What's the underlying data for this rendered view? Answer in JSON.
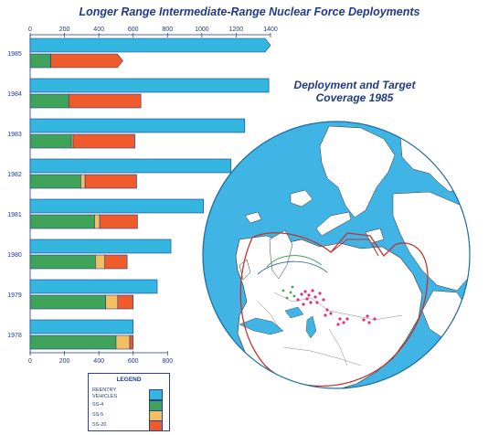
{
  "title": "Longer Range Intermediate-Range Nuclear Force Deployments",
  "subtitle": "Deployment and Target Coverage 1985",
  "legend": {
    "title": "LEGEND",
    "items": [
      {
        "label": "REENTRY VEHICLES",
        "color": "#33b6e0"
      },
      {
        "label": "SS-4",
        "color": "#3fa35a"
      },
      {
        "label": "SS-5",
        "color": "#f2c063"
      },
      {
        "label": "SS-20",
        "color": "#ef5b2a"
      }
    ]
  },
  "chart_data": {
    "type": "bar",
    "orientation": "horizontal",
    "top_axis_ticks": [
      "0",
      "200",
      "400",
      "600",
      "800",
      "1000",
      "1200",
      "1400"
    ],
    "bottom_axis_ticks": [
      "0",
      "200",
      "400",
      "600",
      "800"
    ],
    "xlim": [
      0,
      1400
    ],
    "categories": [
      "1985",
      "1984",
      "1983",
      "1982",
      "1981",
      "1980",
      "1979",
      "1978"
    ],
    "series": [
      {
        "name": "REENTRY VEHICLES",
        "values": [
          1400,
          1390,
          1250,
          1170,
          1010,
          820,
          740,
          600
        ]
      },
      {
        "name": "SS-4",
        "values": [
          120,
          225,
          240,
          295,
          375,
          380,
          440,
          500
        ]
      },
      {
        "name": "SS-5",
        "values": [
          0,
          0,
          10,
          25,
          30,
          55,
          70,
          80
        ]
      },
      {
        "name": "SS-20",
        "values": [
          420,
          420,
          360,
          300,
          220,
          130,
          90,
          20
        ]
      }
    ]
  }
}
